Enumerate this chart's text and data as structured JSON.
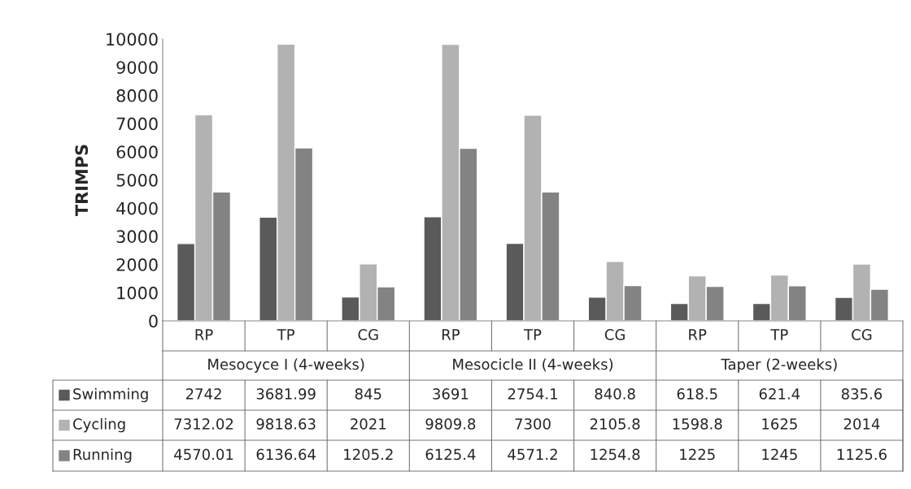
{
  "chart_data": {
    "type": "bar",
    "ylabel": "TRIMPS",
    "categories": [
      "RP",
      "TP",
      "CG",
      "RP",
      "TP",
      "CG",
      "RP",
      "TP",
      "CG"
    ],
    "annotations": [
      "Mesocyce I (4-weeks)",
      "Mesocicle II (4-weeks)",
      "Taper (2-weeks)"
    ],
    "series": [
      {
        "name": "Swimming",
        "color": "#5a5a5a",
        "values": [
          2742,
          3681.99,
          845,
          3691,
          2754.1,
          840.8,
          618.5,
          621.4,
          835.6
        ]
      },
      {
        "name": "Cycling",
        "color": "#b2b2b2",
        "values": [
          7312.02,
          9818.63,
          2021,
          9809.8,
          7300,
          2105.8,
          1598.8,
          1625,
          2014
        ]
      },
      {
        "name": "Running",
        "color": "#838383",
        "values": [
          4570.01,
          6136.64,
          1205.2,
          6125.4,
          4571.2,
          1254.8,
          1225,
          1245,
          1125.6
        ]
      }
    ],
    "ylim": [
      0,
      10000
    ],
    "yticks": [
      0,
      1000,
      2000,
      3000,
      4000,
      5000,
      6000,
      7000,
      8000,
      9000,
      10000
    ],
    "data_labels": true,
    "legend": "bottom left",
    "grid": false
  }
}
